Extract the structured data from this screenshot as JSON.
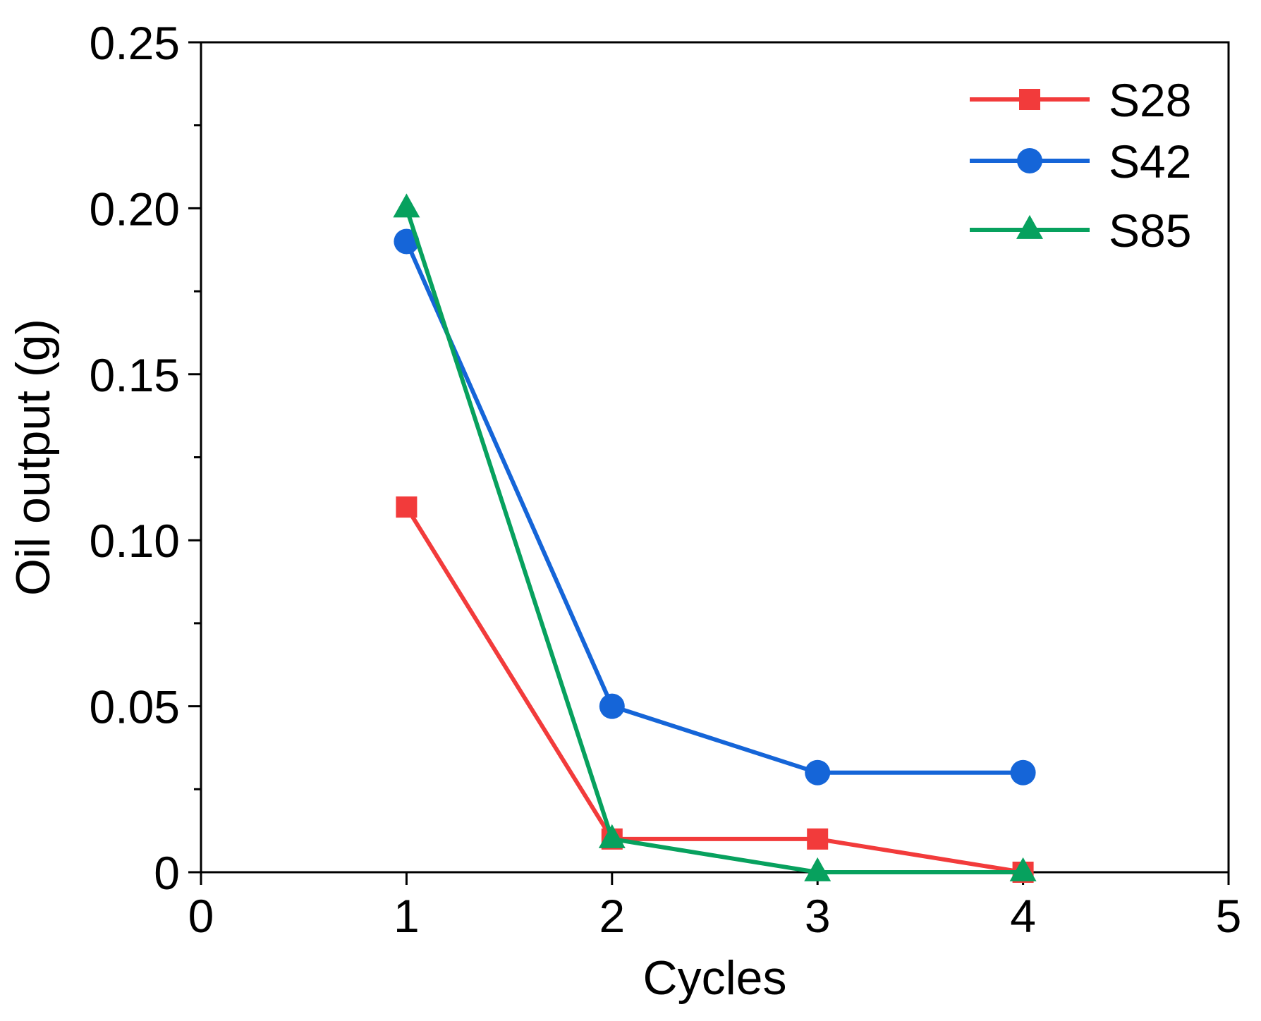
{
  "chart_data": {
    "type": "line",
    "title": "",
    "xlabel": "Cycles",
    "ylabel": "Oil output (g)",
    "xlim": [
      0,
      5
    ],
    "ylim": [
      0,
      0.25
    ],
    "x_ticks": [
      0,
      1,
      2,
      3,
      4,
      5
    ],
    "x_tick_labels": [
      "0",
      "1",
      "2",
      "3",
      "4",
      "5"
    ],
    "y_ticks": [
      0,
      0.05,
      0.1,
      0.15,
      0.2,
      0.25
    ],
    "y_tick_labels": [
      "0",
      "0.05",
      "0.10",
      "0.15",
      "0.20",
      "0.25"
    ],
    "y_minor_ticks": [
      0.025,
      0.075,
      0.125,
      0.175,
      0.225
    ],
    "grid": false,
    "legend_position": "top-right",
    "x": [
      1,
      2,
      3,
      4
    ],
    "series": [
      {
        "name": "S28",
        "marker": "square",
        "color": "#f23b3b",
        "values": [
          0.11,
          0.01,
          0.01,
          0.0
        ]
      },
      {
        "name": "S42",
        "marker": "circle",
        "color": "#1565d8",
        "values": [
          0.19,
          0.05,
          0.03,
          0.03
        ]
      },
      {
        "name": "S85",
        "marker": "triangle",
        "color": "#07a15e",
        "values": [
          0.2,
          0.01,
          0.0,
          0.0
        ]
      }
    ]
  }
}
